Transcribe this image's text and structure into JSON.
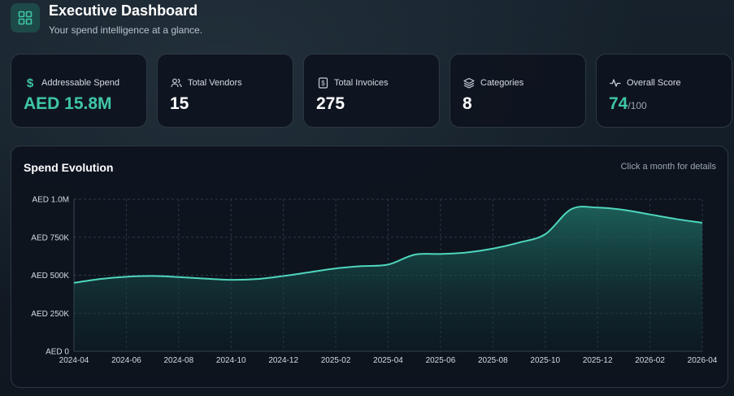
{
  "header": {
    "title": "Executive Dashboard",
    "subtitle": "Your spend intelligence at a glance.",
    "logo_icon": "grid-icon"
  },
  "kpis": [
    {
      "icon": "dollar-icon",
      "label": "Addressable Spend",
      "value": "AED 15.8M",
      "suffix": "",
      "accent": true
    },
    {
      "icon": "users-icon",
      "label": "Total Vendors",
      "value": "15",
      "suffix": "",
      "accent": false
    },
    {
      "icon": "invoice-icon",
      "label": "Total Invoices",
      "value": "275",
      "suffix": "",
      "accent": false
    },
    {
      "icon": "layers-icon",
      "label": "Categories",
      "value": "8",
      "suffix": "",
      "accent": false
    },
    {
      "icon": "activity-icon",
      "label": "Overall Score",
      "value": "74",
      "suffix": "/100",
      "accent": true
    }
  ],
  "panel": {
    "title": "Spend Evolution",
    "hint": "Click a month for details"
  },
  "colors": {
    "accent": "#3fc6a8",
    "line": "#4fd6bd"
  },
  "chart_data": {
    "type": "area",
    "x": [
      "2024-04",
      "2024-05",
      "2024-06",
      "2024-07",
      "2024-08",
      "2024-09",
      "2024-10",
      "2024-11",
      "2024-12",
      "2025-01",
      "2025-02",
      "2025-03",
      "2025-04",
      "2025-05",
      "2025-06",
      "2025-07",
      "2025-08",
      "2025-09",
      "2025-10",
      "2025-11",
      "2025-12",
      "2026-01",
      "2026-02",
      "2026-03",
      "2026-04"
    ],
    "x_tick_labels": [
      "2024-04",
      "2024-06",
      "2024-08",
      "2024-10",
      "2024-12",
      "2025-02",
      "2025-04",
      "2025-06",
      "2025-08",
      "2025-10",
      "2025-12",
      "2026-02",
      "2026-04"
    ],
    "series": [
      {
        "values": [
          450000,
          475000,
          490000,
          495000,
          488000,
          478000,
          470000,
          475000,
          495000,
          520000,
          545000,
          560000,
          570000,
          635000,
          640000,
          650000,
          675000,
          715000,
          770000,
          935000,
          945000,
          930000,
          900000,
          870000,
          845000
        ]
      }
    ],
    "ylim": [
      0,
      1000000
    ],
    "y_ticks": [
      0,
      250000,
      500000,
      750000,
      1000000
    ],
    "y_tick_labels": [
      "AED 0",
      "AED 250K",
      "AED 500K",
      "AED 750K",
      "AED 1.0M"
    ],
    "grid": true
  }
}
